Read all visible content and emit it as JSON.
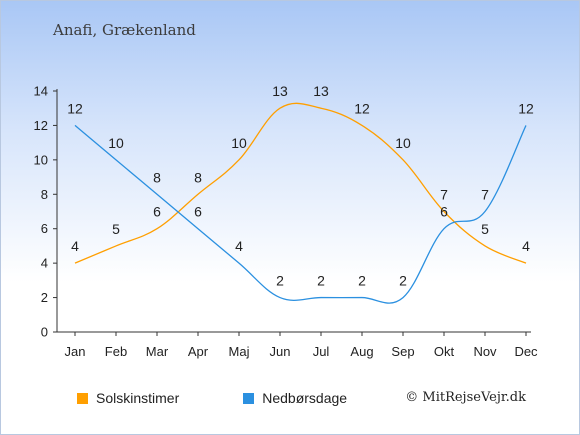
{
  "title": "Anafi, Grækenland",
  "credit": "© MitRejseVejr.dk",
  "colors": {
    "sun": "#FF9F00",
    "rain": "#2B90E0"
  },
  "chart_data": {
    "type": "line",
    "categories": [
      "Jan",
      "Feb",
      "Mar",
      "Apr",
      "Maj",
      "Jun",
      "Jul",
      "Aug",
      "Sep",
      "Okt",
      "Nov",
      "Dec"
    ],
    "series": [
      {
        "name": "Solskinstimer",
        "values": [
          4,
          5,
          6,
          8,
          10,
          13,
          13,
          12,
          10,
          7,
          5,
          4
        ]
      },
      {
        "name": "Nedbørsdage",
        "values": [
          12,
          10,
          8,
          6,
          4,
          2,
          2,
          2,
          2,
          6,
          7,
          12
        ]
      }
    ],
    "ylim": [
      0,
      14
    ],
    "yticks": [
      0,
      2,
      4,
      6,
      8,
      10,
      12,
      14
    ],
    "grid": false,
    "legend": "bottom-left"
  }
}
